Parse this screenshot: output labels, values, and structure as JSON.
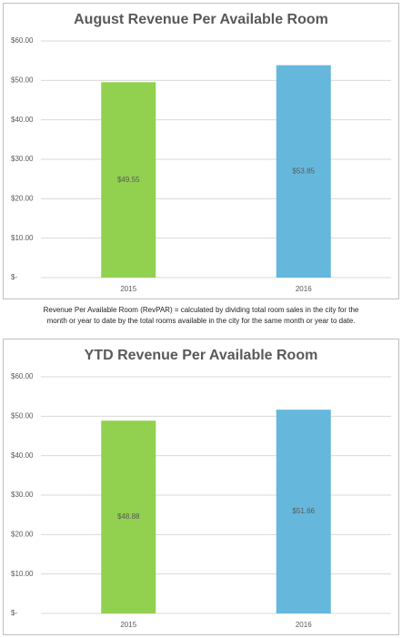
{
  "chart_data": [
    {
      "type": "bar",
      "title": "August Revenue Per Available Room",
      "categories": [
        "2015",
        "2016"
      ],
      "values": [
        49.55,
        53.85
      ],
      "value_labels": [
        "$49.55",
        "$53.85"
      ],
      "colors": [
        "#92d050",
        "#65b8dc"
      ],
      "ylim": [
        0,
        60
      ],
      "yticks": [
        {
          "value": 0,
          "label": "$-"
        },
        {
          "value": 10,
          "label": "$10.00"
        },
        {
          "value": 20,
          "label": "$20.00"
        },
        {
          "value": 30,
          "label": "$30.00"
        },
        {
          "value": 40,
          "label": "$40.00"
        },
        {
          "value": 50,
          "label": "$50.00"
        },
        {
          "value": 60,
          "label": "$60.00"
        }
      ],
      "grid": true
    },
    {
      "type": "bar",
      "title": "YTD Revenue Per Available Room",
      "categories": [
        "2015",
        "2016"
      ],
      "values": [
        48.88,
        51.66
      ],
      "value_labels": [
        "$48.88",
        "$51.66"
      ],
      "colors": [
        "#92d050",
        "#65b8dc"
      ],
      "ylim": [
        0,
        60
      ],
      "yticks": [
        {
          "value": 0,
          "label": "$-"
        },
        {
          "value": 10,
          "label": "$10.00"
        },
        {
          "value": 20,
          "label": "$20.00"
        },
        {
          "value": 30,
          "label": "$30.00"
        },
        {
          "value": 40,
          "label": "$40.00"
        },
        {
          "value": 50,
          "label": "$50.00"
        },
        {
          "value": 60,
          "label": "$60.00"
        }
      ],
      "grid": true
    }
  ],
  "note": "Revenue Per Available Room (RevPAR) = calculated by dividing total room sales in the city for the month or year to date by the total rooms available in the city for the same month or year to date."
}
